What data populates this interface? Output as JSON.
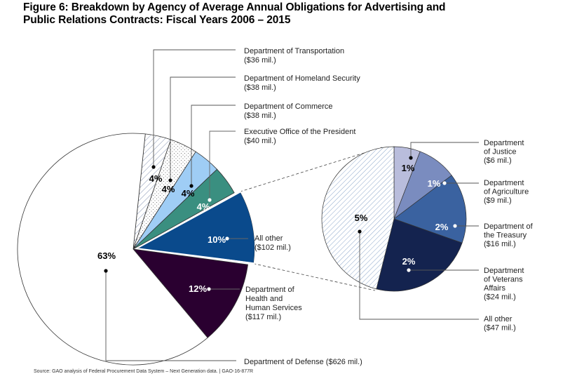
{
  "title_line1": "Figure 6: Breakdown by Agency of Average Annual  Obligations for Advertising and",
  "title_line2": "Public Relations Contracts: Fiscal Years 2006 – 2015",
  "source": "Source: GAO analysis of Federal Procurement Data System – Next Generation data. | GAO-16-877R",
  "chart_data": [
    {
      "type": "pie",
      "title": "Breakdown by Agency of Average Annual Obligations for Advertising and Public Relations Contracts: Fiscal Years 2006 – 2015",
      "units": "millions of dollars",
      "slices": [
        {
          "name": "Department of Transportation",
          "label_lines": [
            "Department of Transportation",
            "($36 mil.)"
          ],
          "value": 36,
          "percent_label": "4%",
          "fill": "hatch-diagonal"
        },
        {
          "name": "Department of Homeland Security",
          "label_lines": [
            "Department of Homeland Security",
            "($38 mil.)"
          ],
          "value": 38,
          "percent_label": "4%",
          "fill": "dotted"
        },
        {
          "name": "Department of Commerce",
          "label_lines": [
            "Department of Commerce",
            "($38 mil.)"
          ],
          "value": 38,
          "percent_label": "4%",
          "fill": "#9fcdf5"
        },
        {
          "name": "Executive Office of the President",
          "label_lines": [
            "Executive Office of the President",
            "($40 mil.)"
          ],
          "value": 40,
          "percent_label": "4%",
          "fill": "#3a8f80"
        },
        {
          "name": "All other",
          "label_lines": [
            "All other",
            "($102 mil.)"
          ],
          "value": 102,
          "percent_label": "10%",
          "fill": "#0a4a8c",
          "exploded": true
        },
        {
          "name": "Department of Health and Human Services",
          "label_lines": [
            "Department of",
            "Health and",
            "Human Services",
            "($117 mil.)"
          ],
          "value": 117,
          "percent_label": "12%",
          "fill": "#2a0030"
        },
        {
          "name": "Department of Defense",
          "label_lines": [
            "Department of Defense ($626 mil.)"
          ],
          "value": 626,
          "percent_label": "63%",
          "fill": "#ffffff"
        }
      ]
    },
    {
      "type": "pie",
      "title": "Breakdown of All other ($102 mil.)",
      "units": "millions of dollars",
      "slices": [
        {
          "name": "Department of Justice",
          "label_lines": [
            "Department",
            "of Justice",
            "($6 mil.)"
          ],
          "value": 6,
          "percent_label": "1%",
          "fill": "#b9bddc"
        },
        {
          "name": "Department of Agriculture",
          "label_lines": [
            "Department",
            "of Agriculture",
            "($9 mil.)"
          ],
          "value": 9,
          "percent_label": "1%",
          "fill": "#7a8cbf"
        },
        {
          "name": "Department of the Treasury",
          "label_lines": [
            "Department of",
            "the Treasury",
            "($16 mil.)"
          ],
          "value": 16,
          "percent_label": "2%",
          "fill": "#3a62a0"
        },
        {
          "name": "Department of Veterans Affairs",
          "label_lines": [
            "Department",
            "of Veterans",
            "Affairs",
            "($24 mil.)"
          ],
          "value": 24,
          "percent_label": "2%",
          "fill": "#14234f"
        },
        {
          "name": "All other",
          "label_lines": [
            "All other",
            "($47 mil.)"
          ],
          "value": 47,
          "percent_label": "5%",
          "fill": "hatch-blue"
        }
      ]
    }
  ]
}
